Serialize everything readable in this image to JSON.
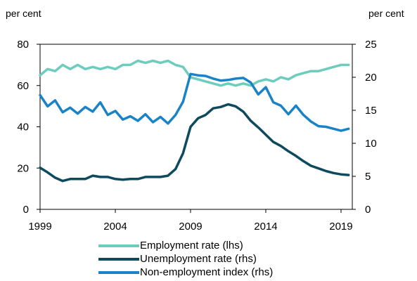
{
  "chart_data": {
    "type": "line",
    "left_axis": {
      "unit": "per cent",
      "ylim": [
        0,
        80
      ],
      "ticks": [
        0,
        20,
        40,
        60,
        80
      ]
    },
    "right_axis": {
      "unit": "per cent",
      "ylim": [
        0,
        25
      ],
      "ticks": [
        0,
        5,
        10,
        15,
        20,
        25
      ]
    },
    "x_ticks": [
      1999,
      2004,
      2009,
      2014,
      2019
    ],
    "xlim": [
      1999,
      2019.75
    ],
    "grid": false,
    "legend_position": "bottom",
    "series": [
      {
        "name": "Employment rate (lhs)",
        "axis": "left",
        "color": "#6ccdbd",
        "x": [
          1999,
          1999.5,
          2000,
          2000.5,
          2001,
          2001.5,
          2002,
          2002.5,
          2003,
          2003.5,
          2004,
          2004.5,
          2005,
          2005.5,
          2006,
          2006.5,
          2007,
          2007.5,
          2008,
          2008.5,
          2009,
          2009.5,
          2010,
          2010.5,
          2011,
          2011.5,
          2012,
          2012.5,
          2013,
          2013.5,
          2014,
          2014.5,
          2015,
          2015.5,
          2016,
          2016.5,
          2017,
          2017.5,
          2018,
          2018.5,
          2019,
          2019.5
        ],
        "values": [
          65,
          68,
          67,
          70,
          68,
          70,
          68,
          69,
          68,
          69,
          68,
          70,
          70,
          72,
          71,
          72,
          71,
          72,
          70,
          69,
          64,
          63,
          62,
          61,
          60,
          61,
          60,
          61,
          60,
          62,
          63,
          62,
          64,
          63,
          65,
          66,
          67,
          67,
          68,
          69,
          70,
          70
        ]
      },
      {
        "name": "Unemployment rate (rhs)",
        "axis": "right",
        "color": "#0e4a5e",
        "x": [
          1999,
          1999.5,
          2000,
          2000.5,
          2001,
          2001.5,
          2002,
          2002.5,
          2003,
          2003.5,
          2004,
          2004.5,
          2005,
          2005.5,
          2006,
          2006.5,
          2007,
          2007.5,
          2008,
          2008.5,
          2009,
          2009.5,
          2010,
          2010.5,
          2011,
          2011.5,
          2012,
          2012.5,
          2013,
          2013.5,
          2014,
          2014.5,
          2015,
          2015.5,
          2016,
          2016.5,
          2017,
          2017.5,
          2018,
          2018.5,
          2019,
          2019.5
        ],
        "values": [
          6.3,
          5.6,
          4.8,
          4.3,
          4.6,
          4.6,
          4.6,
          5.1,
          4.9,
          4.9,
          4.6,
          4.5,
          4.6,
          4.6,
          4.9,
          4.9,
          4.9,
          5.1,
          6.1,
          8.5,
          12.5,
          13.8,
          14.3,
          15.3,
          15.5,
          15.9,
          15.6,
          14.8,
          13.4,
          12.4,
          11.3,
          10.2,
          9.6,
          8.8,
          8.1,
          7.3,
          6.6,
          6.2,
          5.8,
          5.5,
          5.3,
          5.2
        ]
      },
      {
        "name": "Non-employment index (rhs)",
        "axis": "right",
        "color": "#1a82c6",
        "x": [
          1999,
          1999.5,
          2000,
          2000.5,
          2001,
          2001.5,
          2002,
          2002.5,
          2003,
          2003.5,
          2004,
          2004.5,
          2005,
          2005.5,
          2006,
          2006.5,
          2007,
          2007.5,
          2008,
          2008.5,
          2009,
          2009.5,
          2010,
          2010.5,
          2011,
          2011.5,
          2012,
          2012.5,
          2013,
          2013.5,
          2014,
          2014.5,
          2015,
          2015.5,
          2016,
          2016.5,
          2017,
          2017.5,
          2018,
          2018.5,
          2019,
          2019.5
        ],
        "values": [
          17.3,
          15.6,
          16.5,
          14.7,
          15.4,
          14.5,
          15.5,
          14.8,
          16.2,
          14.3,
          14.9,
          13.6,
          14.1,
          13.4,
          14.4,
          13.2,
          14.0,
          13.0,
          14.3,
          16.3,
          20.5,
          20.3,
          20.2,
          19.8,
          19.5,
          19.6,
          19.8,
          19.9,
          19.2,
          17.4,
          18.5,
          16.2,
          15.7,
          14.4,
          15.7,
          14.3,
          13.3,
          12.6,
          12.5,
          12.2,
          11.9,
          12.2
        ]
      }
    ]
  }
}
